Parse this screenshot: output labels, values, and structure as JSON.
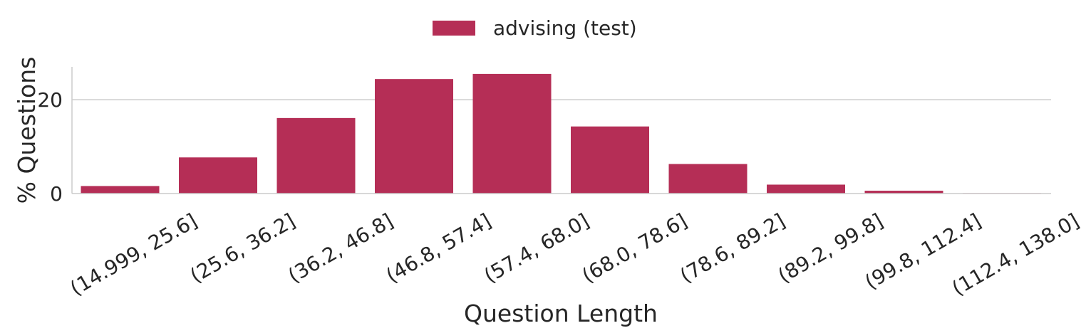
{
  "chart_data": {
    "type": "bar",
    "categories": [
      "(14.999, 25.6]",
      "(25.6, 36.2]",
      "(36.2, 46.8]",
      "(46.8, 57.4]",
      "(57.4, 68.0]",
      "(68.0, 78.6]",
      "(78.6, 89.2]",
      "(89.2, 99.8]",
      "(99.8, 112.4]",
      "(112.4, 138.0]"
    ],
    "series": [
      {
        "name": "advising (test)",
        "values": [
          1.6,
          7.7,
          16.1,
          24.4,
          25.5,
          14.3,
          6.3,
          1.9,
          0.6,
          0.1
        ],
        "color": "#b52e56"
      }
    ],
    "xlabel": "Question Length",
    "ylabel": "% Questions",
    "ylim": [
      0,
      27
    ],
    "yticks": [
      0,
      20
    ],
    "grid": "horizontal",
    "legend_position": "top-center"
  }
}
